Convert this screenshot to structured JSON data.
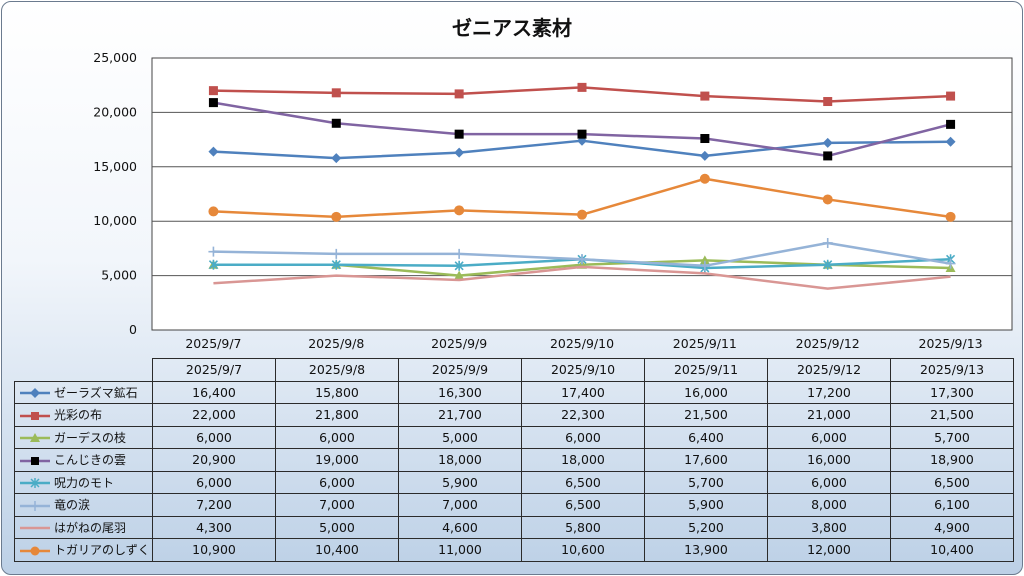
{
  "chart_data": {
    "type": "line",
    "title": "ゼニアス素材",
    "categories": [
      "2025/9/7",
      "2025/9/8",
      "2025/9/9",
      "2025/9/10",
      "2025/9/11",
      "2025/9/12",
      "2025/9/13"
    ],
    "ylim": [
      0,
      25000
    ],
    "yticks": [
      "0",
      "5,000",
      "10,000",
      "15,000",
      "20,000",
      "25,000"
    ],
    "grid": true,
    "legend": "data-table",
    "series": [
      {
        "name": "ゼーラズマ鉱石",
        "color": "#4f81bd",
        "marker": "diamond",
        "values": [
          16400,
          15800,
          16300,
          17400,
          16000,
          17200,
          17300
        ],
        "labels": [
          "16,400",
          "15,800",
          "16,300",
          "17,400",
          "16,000",
          "17,200",
          "17,300"
        ]
      },
      {
        "name": "光彩の布",
        "color": "#c0504d",
        "marker": "square",
        "values": [
          22000,
          21800,
          21700,
          22300,
          21500,
          21000,
          21500
        ],
        "labels": [
          "22,000",
          "21,800",
          "21,700",
          "22,300",
          "21,500",
          "21,000",
          "21,500"
        ]
      },
      {
        "name": "ガーデスの枝",
        "color": "#9bbb59",
        "marker": "triangle",
        "values": [
          6000,
          6000,
          5000,
          6000,
          6400,
          6000,
          5700
        ],
        "labels": [
          "6,000",
          "6,000",
          "5,000",
          "6,000",
          "6,400",
          "6,000",
          "5,700"
        ]
      },
      {
        "name": "こんじきの雲",
        "color": "#8064a2",
        "marker": "square-black",
        "values": [
          20900,
          19000,
          18000,
          18000,
          17600,
          16000,
          18900
        ],
        "labels": [
          "20,900",
          "19,000",
          "18,000",
          "18,000",
          "17,600",
          "16,000",
          "18,900"
        ]
      },
      {
        "name": "呪力のモト",
        "color": "#4bacc6",
        "marker": "star",
        "values": [
          6000,
          6000,
          5900,
          6500,
          5700,
          6000,
          6500
        ],
        "labels": [
          "6,000",
          "6,000",
          "5,900",
          "6,500",
          "5,700",
          "6,000",
          "6,500"
        ]
      },
      {
        "name": "竜の涙",
        "color": "#95b3d7",
        "marker": "plus",
        "values": [
          7200,
          7000,
          7000,
          6500,
          5900,
          8000,
          6100
        ],
        "labels": [
          "7,200",
          "7,000",
          "7,000",
          "6,500",
          "5,900",
          "8,000",
          "6,100"
        ]
      },
      {
        "name": "はがねの尾羽",
        "color": "#d99694",
        "marker": "none",
        "values": [
          4300,
          5000,
          4600,
          5800,
          5200,
          3800,
          4900
        ],
        "labels": [
          "4,300",
          "5,000",
          "4,600",
          "5,800",
          "5,200",
          "3,800",
          "4,900"
        ]
      },
      {
        "name": "トガリアのしずく",
        "color": "#e6883a",
        "marker": "circle",
        "values": [
          10900,
          10400,
          11000,
          10600,
          13900,
          12000,
          10400
        ],
        "labels": [
          "10,900",
          "10,400",
          "11,000",
          "10,600",
          "13,900",
          "12,000",
          "10,400"
        ]
      }
    ]
  }
}
